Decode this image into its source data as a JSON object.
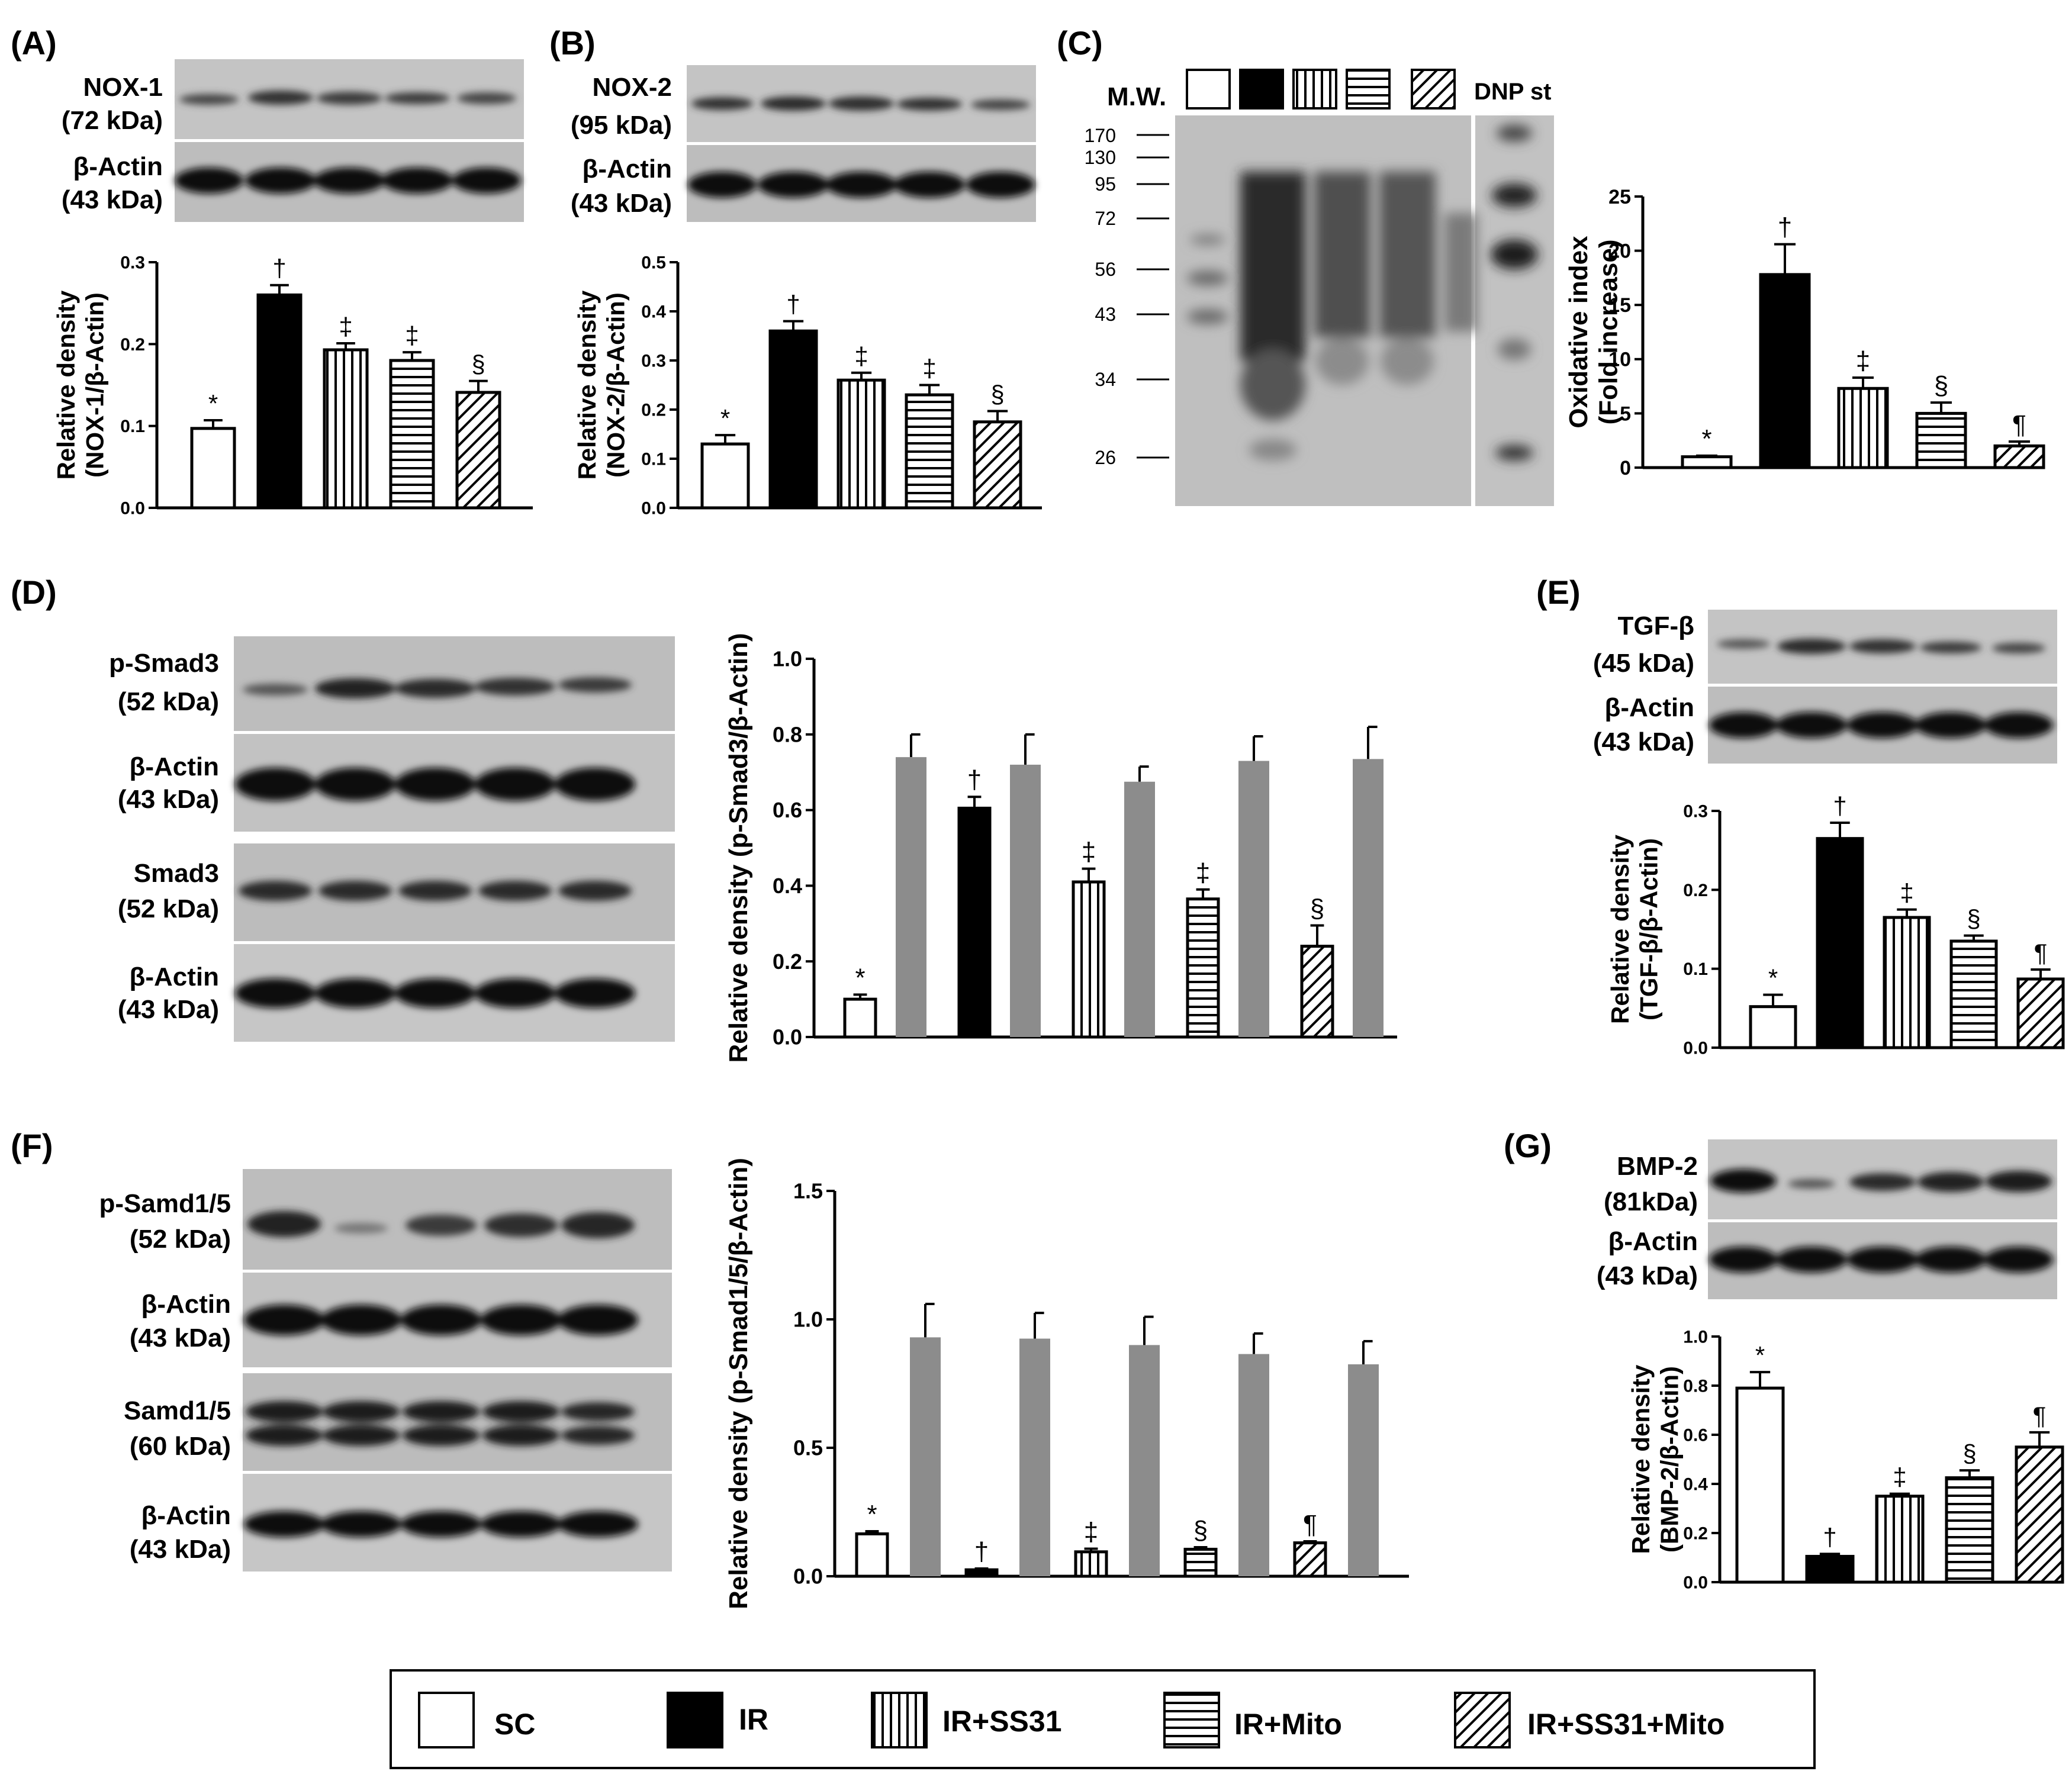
{
  "panels": {
    "A": {
      "letter": "(A)",
      "blots": [
        [
          "NOX-1",
          "(72 kDa)"
        ],
        [
          "β-Actin",
          "(43 kDa)"
        ]
      ]
    },
    "B": {
      "letter": "(B)",
      "blots": [
        [
          "NOX-2",
          "(95 kDa)"
        ],
        [
          "β-Actin",
          "(43 kDa)"
        ]
      ]
    },
    "C": {
      "letter": "(C)",
      "mw_label": "M.W.",
      "dnp_label": "DNP st",
      "mw_markers": [
        "170",
        "130",
        "95",
        "72",
        "56",
        "43",
        "34",
        "26"
      ]
    },
    "D": {
      "letter": "(D)",
      "blots": [
        [
          "p-Smad3",
          "(52 kDa)"
        ],
        [
          "β-Actin",
          "(43 kDa)"
        ],
        [
          "Smad3",
          "(52 kDa)"
        ],
        [
          "β-Actin",
          "(43 kDa)"
        ]
      ]
    },
    "E": {
      "letter": "(E)",
      "blots": [
        [
          "TGF-β",
          "(45 kDa)"
        ],
        [
          "β-Actin",
          "(43 kDa)"
        ]
      ]
    },
    "F": {
      "letter": "(F)",
      "blots": [
        [
          "p-Samd1/5",
          "(52 kDa)"
        ],
        [
          "β-Actin",
          "(43 kDa)"
        ],
        [
          "Samd1/5",
          "(60 kDa)"
        ],
        [
          "β-Actin",
          "(43 kDa)"
        ]
      ]
    },
    "G": {
      "letter": "(G)",
      "blots": [
        [
          "BMP-2",
          "(81kDa)"
        ],
        [
          "β-Actin",
          "(43 kDa)"
        ]
      ]
    }
  },
  "legend": {
    "items": [
      "SC",
      "IR",
      "IR+SS31",
      "IR+Mito",
      "IR+SS31+Mito"
    ]
  },
  "chart_data": [
    {
      "id": "A",
      "type": "bar",
      "categories": [
        "SC",
        "IR",
        "IR+SS31",
        "IR+Mito",
        "IR+SS31+Mito"
      ],
      "values": [
        0.097,
        0.26,
        0.193,
        0.18,
        0.141
      ],
      "errors": [
        0.01,
        0.012,
        0.008,
        0.01,
        0.014
      ],
      "significance": [
        "*",
        "†",
        "‡",
        "‡",
        "§"
      ],
      "ylabel": [
        "Relative density",
        "(NOX-1/β-Actin)"
      ],
      "ylim": [
        0,
        0.3
      ],
      "ticks": [
        "0.0",
        "0.1",
        "0.2",
        "0.3"
      ]
    },
    {
      "id": "B",
      "type": "bar",
      "categories": [
        "SC",
        "IR",
        "IR+SS31",
        "IR+Mito",
        "IR+SS31+Mito"
      ],
      "values": [
        0.13,
        0.36,
        0.26,
        0.23,
        0.175
      ],
      "errors": [
        0.018,
        0.02,
        0.015,
        0.02,
        0.022
      ],
      "significance": [
        "*",
        "†",
        "‡",
        "‡",
        "§"
      ],
      "ylabel": [
        "Relative density",
        "(NOX-2/β-Actin)"
      ],
      "ylim": [
        0,
        0.5
      ],
      "ticks": [
        "0.0",
        "0.1",
        "0.2",
        "0.3",
        "0.4",
        "0.5"
      ]
    },
    {
      "id": "C",
      "type": "bar",
      "categories": [
        "SC",
        "IR",
        "IR+SS31",
        "IR+Mito",
        "IR+SS31+Mito"
      ],
      "values": [
        1,
        17.8,
        7.3,
        5.0,
        2.0
      ],
      "errors": [
        0.1,
        2.8,
        1.0,
        1.0,
        0.4
      ],
      "significance": [
        "*",
        "†",
        "‡",
        "§",
        "¶"
      ],
      "ylabel": [
        "Oxidative index",
        "(Fold increase)"
      ],
      "ylim": [
        0,
        25
      ],
      "ticks": [
        "0",
        "5",
        "10",
        "15",
        "20",
        "25"
      ]
    },
    {
      "id": "D",
      "type": "bar",
      "categories": [
        "SC",
        "IR",
        "IR+SS31",
        "IR+Mito",
        "IR+SS31+Mito"
      ],
      "values": [
        0.1,
        0.605,
        0.41,
        0.365,
        0.24
      ],
      "errors": [
        0.012,
        0.03,
        0.035,
        0.025,
        0.055
      ],
      "paired_values": [
        0.74,
        0.72,
        0.675,
        0.73,
        0.735
      ],
      "paired_errors": [
        0.06,
        0.08,
        0.04,
        0.065,
        0.085
      ],
      "significance": [
        "*",
        "†",
        "‡",
        "‡",
        "§"
      ],
      "ylabel": [
        "Relative density (p-Smad3/β-Actin)"
      ],
      "ylim": [
        0,
        1.0
      ],
      "ticks": [
        "0.0",
        "0.2",
        "0.4",
        "0.6",
        "0.8",
        "1.0"
      ]
    },
    {
      "id": "E",
      "type": "bar",
      "categories": [
        "SC",
        "IR",
        "IR+SS31",
        "IR+Mito",
        "IR+SS31+Mito"
      ],
      "values": [
        0.052,
        0.265,
        0.165,
        0.135,
        0.087
      ],
      "errors": [
        0.015,
        0.02,
        0.01,
        0.007,
        0.012
      ],
      "significance": [
        "*",
        "†",
        "‡",
        "§",
        "¶"
      ],
      "ylabel": [
        "Relative density",
        "(TGF-β/β-Actin)"
      ],
      "ylim": [
        0,
        0.3
      ],
      "ticks": [
        "0.0",
        "0.1",
        "0.2",
        "0.3"
      ]
    },
    {
      "id": "F",
      "type": "bar",
      "categories": [
        "SC",
        "IR",
        "IR+SS31",
        "IR+Mito",
        "IR+SS31+Mito"
      ],
      "values": [
        0.165,
        0.025,
        0.095,
        0.105,
        0.13
      ],
      "errors": [
        0.01,
        0.005,
        0.012,
        0.008,
        0.006
      ],
      "paired_values": [
        0.93,
        0.925,
        0.9,
        0.865,
        0.825
      ],
      "paired_errors": [
        0.13,
        0.1,
        0.11,
        0.08,
        0.09
      ],
      "significance": [
        "*",
        "†",
        "‡",
        "§",
        "¶"
      ],
      "ylabel": [
        "Relative density (p-Smad1/5/β-Actin)"
      ],
      "ylim": [
        0,
        1.5
      ],
      "ticks": [
        "0.0",
        "0.5",
        "1.0",
        "1.5"
      ]
    },
    {
      "id": "G",
      "type": "bar",
      "categories": [
        "SC",
        "IR",
        "IR+SS31",
        "IR+Mito",
        "IR+SS31+Mito"
      ],
      "values": [
        0.79,
        0.105,
        0.35,
        0.425,
        0.55
      ],
      "errors": [
        0.065,
        0.01,
        0.01,
        0.03,
        0.06
      ],
      "significance": [
        "*",
        "†",
        "‡",
        "§",
        "¶"
      ],
      "ylabel": [
        "Relative density",
        "(BMP-2/β-Actin)"
      ],
      "ylim": [
        0,
        1.0
      ],
      "ticks": [
        "0.0",
        "0.2",
        "0.4",
        "0.6",
        "0.8",
        "1.0"
      ]
    }
  ],
  "colors": {
    "ink": "#000000",
    "paired": "#8c8c8c",
    "blot_bg": "#bdbdbd"
  }
}
